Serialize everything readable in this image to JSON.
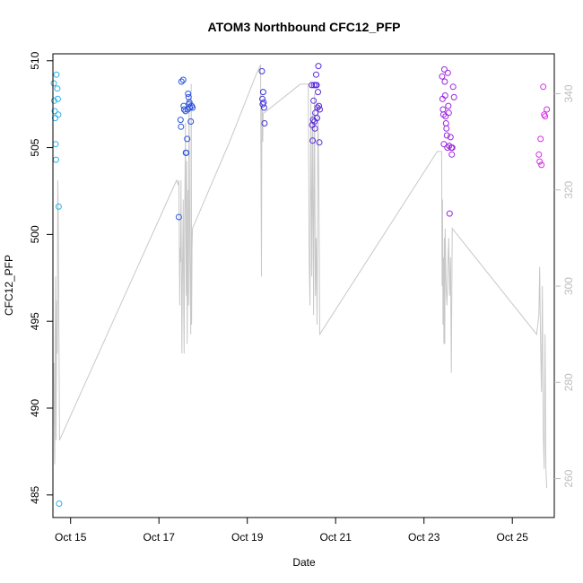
{
  "chart_data": {
    "type": "scatter",
    "title": "ATOM3 Northbound CFC12_PFP",
    "xlabel": "Date",
    "ylabel": "CFC12_PFP",
    "x_ticks": [
      "Oct 15",
      "Oct 17",
      "Oct 19",
      "Oct 21",
      "Oct 23",
      "Oct 25"
    ],
    "x_tick_values": [
      1,
      3,
      5,
      7,
      9,
      11
    ],
    "xlim": [
      0.6,
      11.95
    ],
    "ylim": [
      483.7,
      510.4
    ],
    "y_ticks": [
      485,
      490,
      495,
      500,
      505,
      510
    ],
    "y2label": "",
    "y2lim": [
      251.9,
      348.3
    ],
    "y2_ticks": [
      260,
      280,
      300,
      320,
      340
    ],
    "grid": false,
    "colors": {
      "points_gradient": [
        "#29b6e8",
        "#2a3cdc",
        "#7a1ee0",
        "#d52ee3"
      ],
      "secondary_line": "#c8c8c8",
      "right_axis": "#bdbdbd"
    },
    "series": [
      {
        "points": [
          [
            0.62,
            508.7
          ],
          [
            0.63,
            507.7
          ],
          [
            0.64,
            507.1
          ],
          [
            0.65,
            506.7
          ],
          [
            0.66,
            505.2
          ],
          [
            0.67,
            504.3
          ],
          [
            0.68,
            509.2
          ],
          [
            0.7,
            508.4
          ],
          [
            0.71,
            507.8
          ],
          [
            0.72,
            506.9
          ],
          [
            0.73,
            501.6
          ],
          [
            0.74,
            484.5
          ],
          [
            3.45,
            501.0
          ],
          [
            3.49,
            506.6
          ],
          [
            3.5,
            506.2
          ],
          [
            3.51,
            508.8
          ],
          [
            3.55,
            508.9
          ],
          [
            3.56,
            507.4
          ],
          [
            3.57,
            507.2
          ],
          [
            3.6,
            507.1
          ],
          [
            3.61,
            504.7
          ],
          [
            3.62,
            504.7
          ],
          [
            3.64,
            505.5
          ],
          [
            3.65,
            507.2
          ],
          [
            3.66,
            508.1
          ],
          [
            3.67,
            507.9
          ],
          [
            3.68,
            507.5
          ],
          [
            3.69,
            507.6
          ],
          [
            3.7,
            507.3
          ],
          [
            3.72,
            506.5
          ],
          [
            3.74,
            507.4
          ],
          [
            3.76,
            507.3
          ],
          [
            5.33,
            509.4
          ],
          [
            5.34,
            507.8
          ],
          [
            5.35,
            507.5
          ],
          [
            5.36,
            508.2
          ],
          [
            5.37,
            507.6
          ],
          [
            5.38,
            507.3
          ],
          [
            5.39,
            506.4
          ],
          [
            6.46,
            508.6
          ],
          [
            6.47,
            506.3
          ],
          [
            6.48,
            505.4
          ],
          [
            6.49,
            506.6
          ],
          [
            6.5,
            507.7
          ],
          [
            6.51,
            508.6
          ],
          [
            6.52,
            506.5
          ],
          [
            6.53,
            506.1
          ],
          [
            6.54,
            507.0
          ],
          [
            6.55,
            508.6
          ],
          [
            6.56,
            509.2
          ],
          [
            6.57,
            508.6
          ],
          [
            6.58,
            506.7
          ],
          [
            6.59,
            507.3
          ],
          [
            6.6,
            508.2
          ],
          [
            6.61,
            509.7
          ],
          [
            6.62,
            507.4
          ],
          [
            6.63,
            505.3
          ],
          [
            6.64,
            507.2
          ],
          [
            9.41,
            509.1
          ],
          [
            9.42,
            507.8
          ],
          [
            9.43,
            507.2
          ],
          [
            9.44,
            506.9
          ],
          [
            9.45,
            505.2
          ],
          [
            9.46,
            509.5
          ],
          [
            9.47,
            508.8
          ],
          [
            9.48,
            508.0
          ],
          [
            9.49,
            506.8
          ],
          [
            9.5,
            506.4
          ],
          [
            9.51,
            506.1
          ],
          [
            9.52,
            505.7
          ],
          [
            9.53,
            505.0
          ],
          [
            9.54,
            509.3
          ],
          [
            9.55,
            507.4
          ],
          [
            9.56,
            507.0
          ],
          [
            9.57,
            505.1
          ],
          [
            9.58,
            501.2
          ],
          [
            9.6,
            505.6
          ],
          [
            9.62,
            505.0
          ],
          [
            9.63,
            504.6
          ],
          [
            9.64,
            505.0
          ],
          [
            9.66,
            508.5
          ],
          [
            9.68,
            507.9
          ],
          [
            11.6,
            504.6
          ],
          [
            11.62,
            504.2
          ],
          [
            11.64,
            505.5
          ],
          [
            11.66,
            504.0
          ],
          [
            11.7,
            508.5
          ],
          [
            11.72,
            506.9
          ],
          [
            11.74,
            506.8
          ],
          [
            11.78,
            507.2
          ]
        ]
      },
      {
        "axis": "right",
        "points": [
          [
            0.62,
            284
          ],
          [
            0.63,
            270
          ],
          [
            0.64,
            263
          ],
          [
            0.65,
            290
          ],
          [
            0.66,
            302
          ],
          [
            0.67,
            268
          ],
          [
            0.69,
            297
          ],
          [
            0.7,
            286
          ],
          [
            0.71,
            322
          ],
          [
            0.72,
            316
          ],
          [
            0.75,
            268
          ],
          [
            3.4,
            322
          ],
          [
            3.44,
            321
          ],
          [
            3.45,
            322
          ],
          [
            3.47,
            296
          ],
          [
            3.48,
            308
          ],
          [
            3.49,
            305
          ],
          [
            3.5,
            322
          ],
          [
            3.52,
            286
          ],
          [
            3.53,
            300
          ],
          [
            3.55,
            318
          ],
          [
            3.56,
            296
          ],
          [
            3.57,
            286
          ],
          [
            3.58,
            312
          ],
          [
            3.6,
            334
          ],
          [
            3.61,
            310
          ],
          [
            3.62,
            298
          ],
          [
            3.63,
            326
          ],
          [
            3.64,
            288
          ],
          [
            3.65,
            300
          ],
          [
            3.66,
            320
          ],
          [
            3.67,
            296
          ],
          [
            3.68,
            340
          ],
          [
            3.7,
            306
          ],
          [
            3.72,
            290
          ],
          [
            3.73,
            342
          ],
          [
            3.74,
            292
          ],
          [
            3.75,
            308
          ],
          [
            3.76,
            312
          ],
          [
            4.6,
            330
          ],
          [
            5.2,
            344
          ],
          [
            5.3,
            346
          ],
          [
            5.32,
            302
          ],
          [
            5.33,
            338
          ],
          [
            5.34,
            336
          ],
          [
            5.35,
            330
          ],
          [
            5.36,
            336
          ],
          [
            5.38,
            336
          ],
          [
            6.2,
            342
          ],
          [
            6.38,
            342
          ],
          [
            6.4,
            306
          ],
          [
            6.42,
            296
          ],
          [
            6.44,
            338
          ],
          [
            6.46,
            302
          ],
          [
            6.48,
            336
          ],
          [
            6.5,
            294
          ],
          [
            6.52,
            340
          ],
          [
            6.54,
            298
          ],
          [
            6.56,
            310
          ],
          [
            6.58,
            292
          ],
          [
            6.6,
            338
          ],
          [
            6.62,
            320
          ],
          [
            6.64,
            290
          ],
          [
            9.3,
            328
          ],
          [
            9.4,
            328
          ],
          [
            9.41,
            300
          ],
          [
            9.42,
            318
          ],
          [
            9.43,
            292
          ],
          [
            9.44,
            306
          ],
          [
            9.45,
            288
          ],
          [
            9.46,
            310
          ],
          [
            9.47,
            288
          ],
          [
            9.48,
            312
          ],
          [
            9.5,
            300
          ],
          [
            9.52,
            296
          ],
          [
            9.54,
            304
          ],
          [
            9.56,
            310
          ],
          [
            9.58,
            298
          ],
          [
            9.6,
            306
          ],
          [
            9.62,
            282
          ],
          [
            9.64,
            312
          ],
          [
            11.55,
            290
          ],
          [
            11.6,
            294
          ],
          [
            11.62,
            304
          ],
          [
            11.64,
            288
          ],
          [
            11.66,
            278
          ],
          [
            11.68,
            300
          ],
          [
            11.7,
            270
          ],
          [
            11.72,
            262
          ],
          [
            11.74,
            290
          ],
          [
            11.76,
            262
          ],
          [
            11.78,
            258
          ]
        ]
      }
    ]
  }
}
